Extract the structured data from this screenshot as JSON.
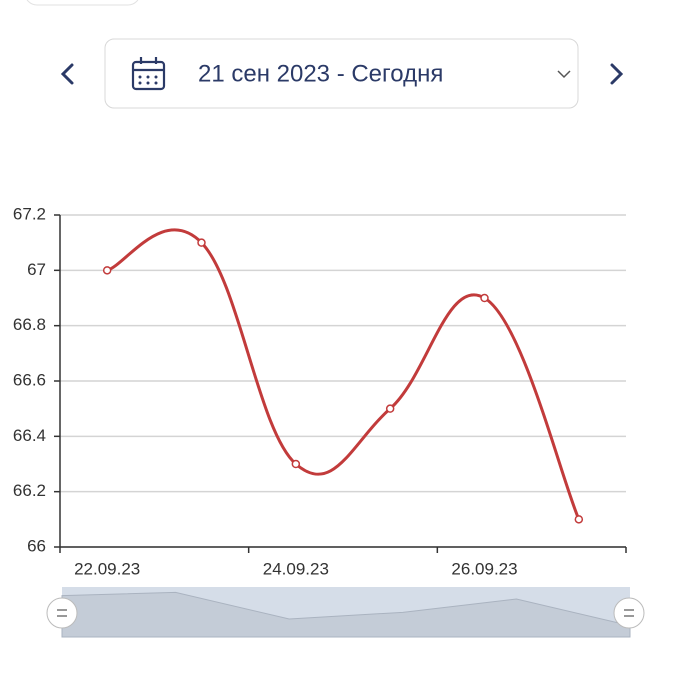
{
  "date_picker": {
    "label": "21 сен 2023 - Сегодня"
  },
  "chart_data": {
    "type": "line",
    "categories": [
      "22.09.23",
      null,
      "24.09.23",
      null,
      "26.09.23",
      null
    ],
    "series": [
      {
        "color": "#c23b3b",
        "values": [
          67,
          67.1,
          66.3,
          66.5,
          66.9,
          66.1
        ]
      }
    ],
    "ylim": [
      66,
      67.2
    ],
    "yticks": [
      66,
      66.2,
      66.4,
      66.6,
      66.8,
      67,
      67.2
    ],
    "grid": true
  }
}
